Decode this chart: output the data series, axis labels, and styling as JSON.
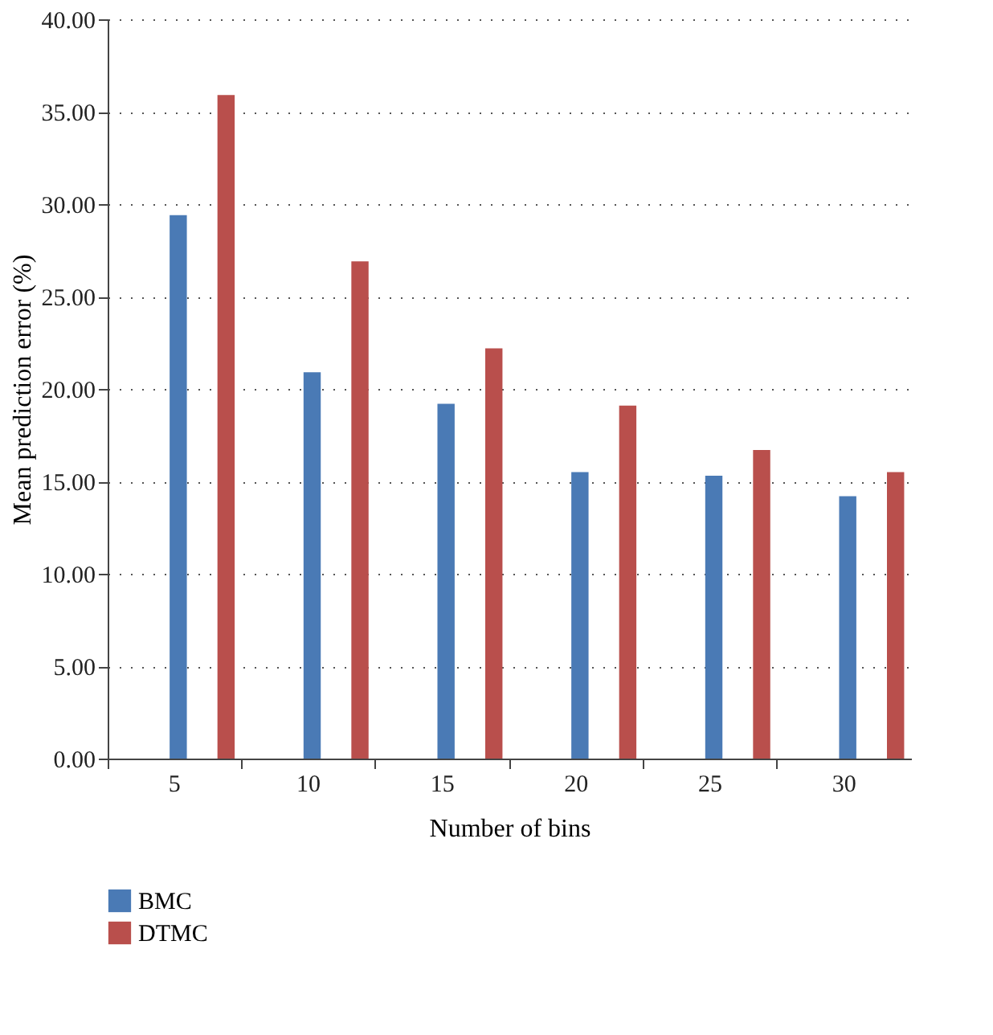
{
  "chart_data": {
    "type": "bar",
    "xlabel": "Number of bins",
    "ylabel": "Mean prediction error (%)",
    "categories": [
      "5",
      "10",
      "15",
      "20",
      "25",
      "30"
    ],
    "series": [
      {
        "name": "BMC",
        "color": "#4a7ab5",
        "values": [
          29.4,
          20.9,
          19.2,
          15.5,
          15.3,
          14.2
        ]
      },
      {
        "name": "DTMC",
        "color": "#b94f4c",
        "values": [
          35.9,
          26.9,
          22.2,
          19.1,
          16.7,
          15.5
        ]
      }
    ],
    "ylim": [
      0,
      40
    ],
    "yticks": [
      {
        "value": 0,
        "label": "0.00"
      },
      {
        "value": 5,
        "label": "5.00"
      },
      {
        "value": 10,
        "label": "10.00"
      },
      {
        "value": 15,
        "label": "15.00"
      },
      {
        "value": 20,
        "label": "20.00"
      },
      {
        "value": 25,
        "label": "25.00"
      },
      {
        "value": 30,
        "label": "30.00"
      },
      {
        "value": 35,
        "label": "35.00"
      },
      {
        "value": 40,
        "label": "40.00"
      }
    ],
    "grid": "y",
    "legend": "bottom left"
  }
}
